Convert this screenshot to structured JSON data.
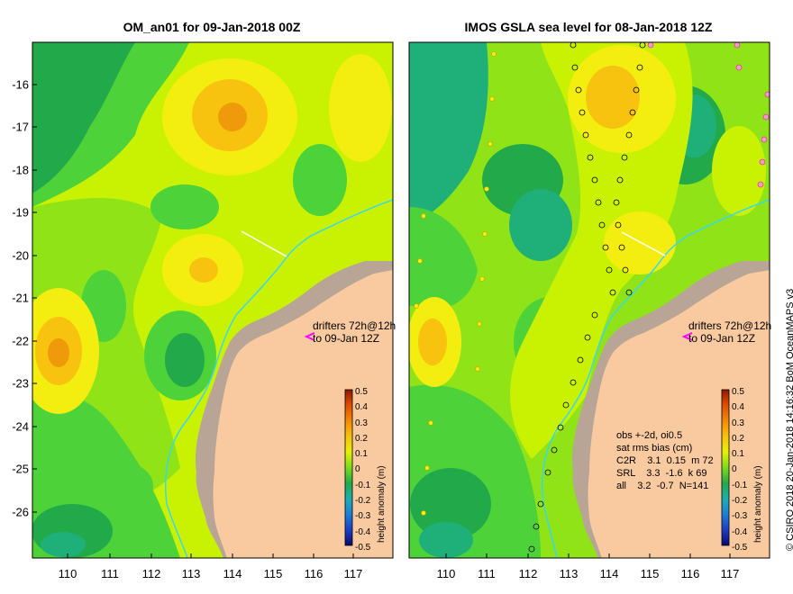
{
  "left_panel": {
    "title": "OM_an01 for 09-Jan-2018 00Z",
    "drifters_line1": "drifters 72h@12h",
    "drifters_line2": "to 09-Jan 12Z"
  },
  "right_panel": {
    "title": "IMOS GSLA sea level  for 08-Jan-2018 12Z",
    "drifters_line1": "drifters 72h@12h",
    "drifters_line2": "to 09-Jan 12Z",
    "stats": {
      "line1": "obs +-2d, oi0.5",
      "line2": "sat rms bias (cm)",
      "line3": "C2R    3.1  0.15  m 72",
      "line4": "SRL    3.3  -1.6  k 69",
      "line5": "all    3.2  -0.7  N=141"
    }
  },
  "y_ticks": [
    "-16",
    "-17",
    "-18",
    "-19",
    "-20",
    "-21",
    "-22",
    "-23",
    "-24",
    "-25",
    "-26"
  ],
  "x_ticks": [
    "110",
    "111",
    "112",
    "113",
    "114",
    "115",
    "116",
    "117"
  ],
  "colorbar": {
    "label": "height anomaly (m)",
    "ticks": [
      "0.5",
      "0.4",
      "0.3",
      "0.2",
      "0.1",
      "0",
      "-0.1",
      "-0.2",
      "-0.3",
      "-0.4",
      "-0.5"
    ]
  },
  "credit": "© CSIRO 2018   20-Jan-2018 14:16:32 BoM OceanMAPS v3",
  "colors": {
    "land": "#F9C9A0",
    "coast_edge": "#B8A595",
    "dark_green": "#22AA4A",
    "green": "#4ED23A",
    "light_green": "#8FE317",
    "yellow_green": "#C9F202",
    "yellow": "#F4EE10",
    "orange": "#F7C30E",
    "dark_orange": "#EE9A0A",
    "teal": "#1FB07A",
    "drifter": "#FF00FF",
    "isobath": "#38D8F0"
  }
}
